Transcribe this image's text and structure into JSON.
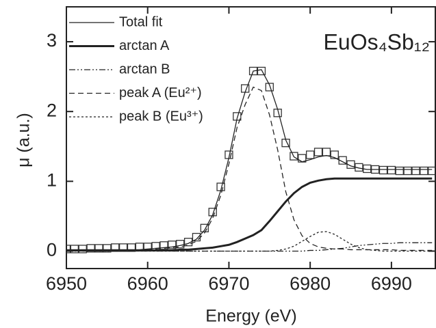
{
  "chart_data": {
    "type": "line",
    "annotation": "EuOs₄Sb₁₂",
    "xlabel": "Energy (eV)",
    "ylabel": "μ (a.u.)",
    "x": [
      6950,
      6951,
      6952,
      6953,
      6954,
      6955,
      6956,
      6957,
      6958,
      6959,
      6960,
      6961,
      6962,
      6963,
      6964,
      6965,
      6966,
      6967,
      6968,
      6969,
      6970,
      6971,
      6972,
      6973,
      6974,
      6975,
      6976,
      6977,
      6978,
      6979,
      6980,
      6981,
      6982,
      6983,
      6984,
      6985,
      6986,
      6987,
      6988,
      6989,
      6990,
      6991,
      6992,
      6993,
      6994,
      6995
    ],
    "xlim": [
      6950,
      6995.4
    ],
    "xticks": [
      6950,
      6960,
      6970,
      6980,
      6990
    ],
    "ylim": [
      -0.25,
      3.5
    ],
    "yticks": [
      0,
      1,
      2,
      3
    ],
    "legend": "upper-left",
    "series": [
      {
        "marker": "square",
        "color": "#333333",
        "values": [
          0.03,
          0.03,
          0.03,
          0.04,
          0.04,
          0.04,
          0.05,
          0.05,
          0.05,
          0.06,
          0.06,
          0.07,
          0.08,
          0.09,
          0.1,
          0.13,
          0.2,
          0.33,
          0.56,
          0.92,
          1.38,
          1.93,
          2.33,
          2.58,
          2.58,
          2.35,
          1.98,
          1.55,
          1.36,
          1.33,
          1.38,
          1.42,
          1.42,
          1.38,
          1.3,
          1.24,
          1.2,
          1.18,
          1.17,
          1.16,
          1.16,
          1.15,
          1.15,
          1.15,
          1.15,
          1.15
        ]
      },
      {
        "name": "Total fit",
        "style": "thin",
        "color": "#222222",
        "values": [
          0.02,
          0.02,
          0.02,
          0.02,
          0.02,
          0.02,
          0.02,
          0.02,
          0.02,
          0.02,
          0.03,
          0.04,
          0.05,
          0.06,
          0.08,
          0.11,
          0.17,
          0.3,
          0.52,
          0.87,
          1.34,
          1.9,
          2.28,
          2.58,
          2.6,
          2.38,
          2.03,
          1.59,
          1.35,
          1.28,
          1.31,
          1.35,
          1.37,
          1.34,
          1.28,
          1.22,
          1.19,
          1.17,
          1.17,
          1.17,
          1.17,
          1.17,
          1.17,
          1.17,
          1.17,
          1.17
        ]
      },
      {
        "name": "arctan A",
        "style": "thick",
        "color": "#222222",
        "values": [
          0.01,
          0.01,
          0.01,
          0.01,
          0.01,
          0.01,
          0.01,
          0.01,
          0.01,
          0.01,
          0.01,
          0.01,
          0.01,
          0.01,
          0.02,
          0.02,
          0.03,
          0.04,
          0.05,
          0.07,
          0.09,
          0.13,
          0.18,
          0.23,
          0.3,
          0.43,
          0.57,
          0.71,
          0.83,
          0.92,
          0.98,
          1.01,
          1.03,
          1.04,
          1.04,
          1.04,
          1.04,
          1.04,
          1.04,
          1.04,
          1.04,
          1.04,
          1.04,
          1.04,
          1.04,
          1.04
        ]
      },
      {
        "name": "arctan B",
        "style": "dash-dot",
        "color": "#222222",
        "values": [
          0,
          0,
          0,
          0,
          0,
          0,
          0,
          0,
          0,
          0,
          0,
          0,
          0,
          0,
          0,
          0,
          0,
          0,
          0,
          0,
          0,
          0,
          0,
          0,
          0,
          0,
          0,
          0,
          0,
          0,
          0.01,
          0.01,
          0.02,
          0.03,
          0.04,
          0.06,
          0.08,
          0.09,
          0.1,
          0.11,
          0.11,
          0.12,
          0.12,
          0.12,
          0.12,
          0.12
        ]
      },
      {
        "name": "peak A (Eu²⁺)",
        "style": "dashed",
        "color": "#222222",
        "values": [
          0.01,
          0.01,
          0.01,
          0.01,
          0.01,
          0.01,
          0.01,
          0.01,
          0.01,
          0.01,
          0.02,
          0.03,
          0.04,
          0.05,
          0.06,
          0.09,
          0.14,
          0.26,
          0.47,
          0.8,
          1.25,
          1.77,
          2.1,
          2.35,
          2.3,
          1.95,
          1.45,
          0.85,
          0.45,
          0.22,
          0.11,
          0.06,
          0.04,
          0.03,
          0.03,
          0.02,
          0.02,
          0.02,
          0.02,
          0.02,
          0.02,
          0.01,
          0.01,
          0.01,
          0.01,
          0.01
        ]
      },
      {
        "name": "peak B (Eu³⁺)",
        "style": "dotted",
        "color": "#222222",
        "values": [
          0,
          0,
          0,
          0,
          0,
          0,
          0,
          0,
          0,
          0,
          0,
          0,
          0,
          0,
          0,
          0,
          0,
          0,
          0,
          0,
          0,
          0,
          0,
          0,
          0,
          0,
          0.01,
          0.03,
          0.07,
          0.14,
          0.21,
          0.27,
          0.28,
          0.24,
          0.17,
          0.1,
          0.05,
          0.02,
          0.01,
          0,
          0,
          0,
          0,
          0,
          0,
          0
        ]
      }
    ]
  }
}
